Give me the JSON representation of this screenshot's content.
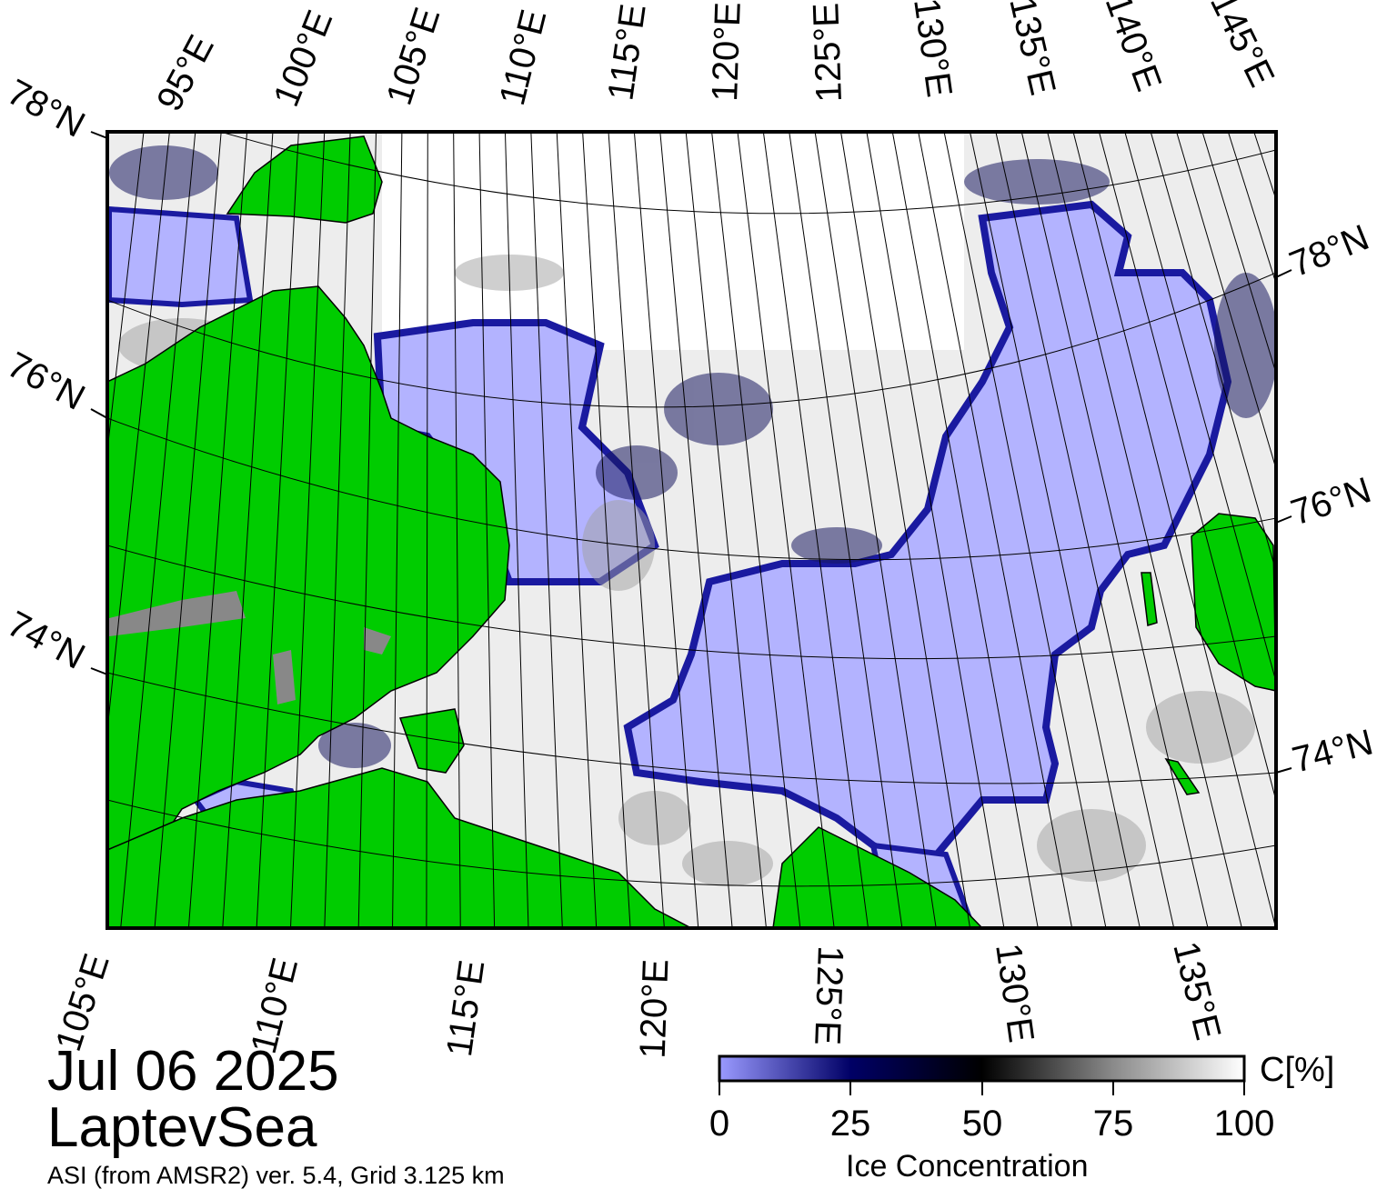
{
  "map": {
    "date": "Jul 06 2025",
    "region": "LaptevSea",
    "source": "ASI (from AMSR2) ver. 5.4,  Grid 3.125 km",
    "top_lon_labels": [
      "95°E",
      "100°E",
      "105°E",
      "110°E",
      "115°E",
      "120°E",
      "125°E",
      "130°E",
      "135°E",
      "140°E",
      "145°E"
    ],
    "bottom_lon_labels": [
      "105°E",
      "110°E",
      "115°E",
      "120°E",
      "125°E",
      "130°E",
      "135°E"
    ],
    "left_lat_labels": [
      "78°N",
      "76°N",
      "74°N"
    ],
    "right_lat_labels": [
      "78°N",
      "76°N",
      "74°N"
    ],
    "colors": {
      "land": "#00cc00",
      "land_ice_free_coast": "#888888",
      "open_water": "#b3b3ff",
      "ice_low": "#00007a",
      "ice_high": "#ffffff",
      "frame": "#000000"
    },
    "legend": {
      "title": "Ice Concentration",
      "unit": "C[%]",
      "ticks": [
        "0",
        "25",
        "50",
        "75",
        "100"
      ],
      "range": [
        0,
        100
      ]
    }
  }
}
